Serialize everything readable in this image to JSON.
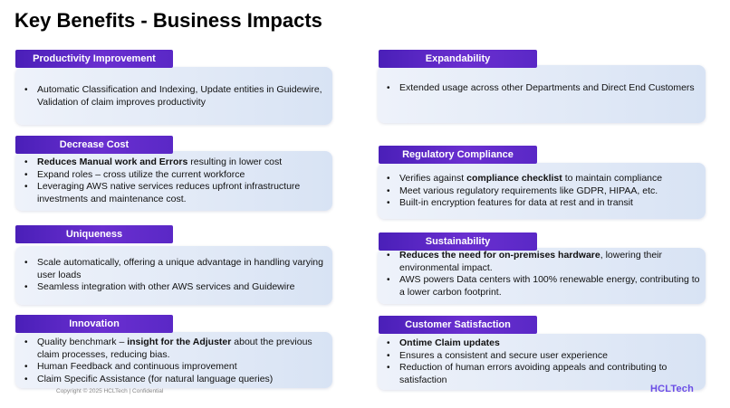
{
  "title": "Key Benefits - Business Impacts",
  "sections": {
    "productivity": {
      "label": "Productivity Improvement",
      "bullets": [
        {
          "text": "Automatic Classification and Indexing, Update entities in Guidewire, Validation of claim improves productivity"
        }
      ]
    },
    "decrease_cost": {
      "label": "Decrease Cost",
      "bullets": [
        {
          "bold": "Reduces Manual work and Errors",
          "text": " resulting in lower cost"
        },
        {
          "text": "Expand roles – cross utilize the current workforce"
        },
        {
          "text": "Leveraging AWS native services reduces upfront infrastructure investments and maintenance cost."
        }
      ]
    },
    "uniqueness": {
      "label": "Uniqueness",
      "bullets": [
        {
          "text": "Scale automatically, offering a unique advantage in handling varying user loads"
        },
        {
          "text": "Seamless integration with other AWS services and Guidewire"
        }
      ]
    },
    "innovation": {
      "label": "Innovation",
      "bullets": [
        {
          "pre": "Quality benchmark – ",
          "bold": "insight for the Adjuster",
          "text": " about the previous claim processes, reducing bias."
        },
        {
          "text": "Human Feedback and continuous improvement"
        },
        {
          "text": "Claim Specific Assistance (for natural language queries)"
        }
      ]
    },
    "expandability": {
      "label": "Expandability",
      "bullets": [
        {
          "text": "Extended usage across other Departments  and Direct End Customers"
        }
      ]
    },
    "regulatory": {
      "label": "Regulatory Compliance",
      "bullets": [
        {
          "pre": "Verifies against ",
          "bold": "compliance checklist",
          "text": " to maintain compliance"
        },
        {
          "text": "Meet various regulatory requirements like GDPR, HIPAA, etc."
        },
        {
          "text": "Built-in encryption features for data at rest and in transit"
        }
      ]
    },
    "sustainability": {
      "label": "Sustainability",
      "bullets": [
        {
          "bold": "Reduces the need for on-premises hardware",
          "text": ", lowering their environmental impact."
        },
        {
          "text": "AWS powers Data centers with 100% renewable energy, contributing to a lower carbon footprint."
        }
      ]
    },
    "customer": {
      "label": "Customer Satisfaction",
      "bullets": [
        {
          "bold": "Ontime Claim updates"
        },
        {
          "text": "Ensures a consistent and secure user experience"
        },
        {
          "text": "Reduction of human errors avoiding appeals and contributing to satisfaction"
        }
      ]
    }
  },
  "footer": "Copyright © 2025 HCLTech | Confidential",
  "logo": "HCLTech"
}
